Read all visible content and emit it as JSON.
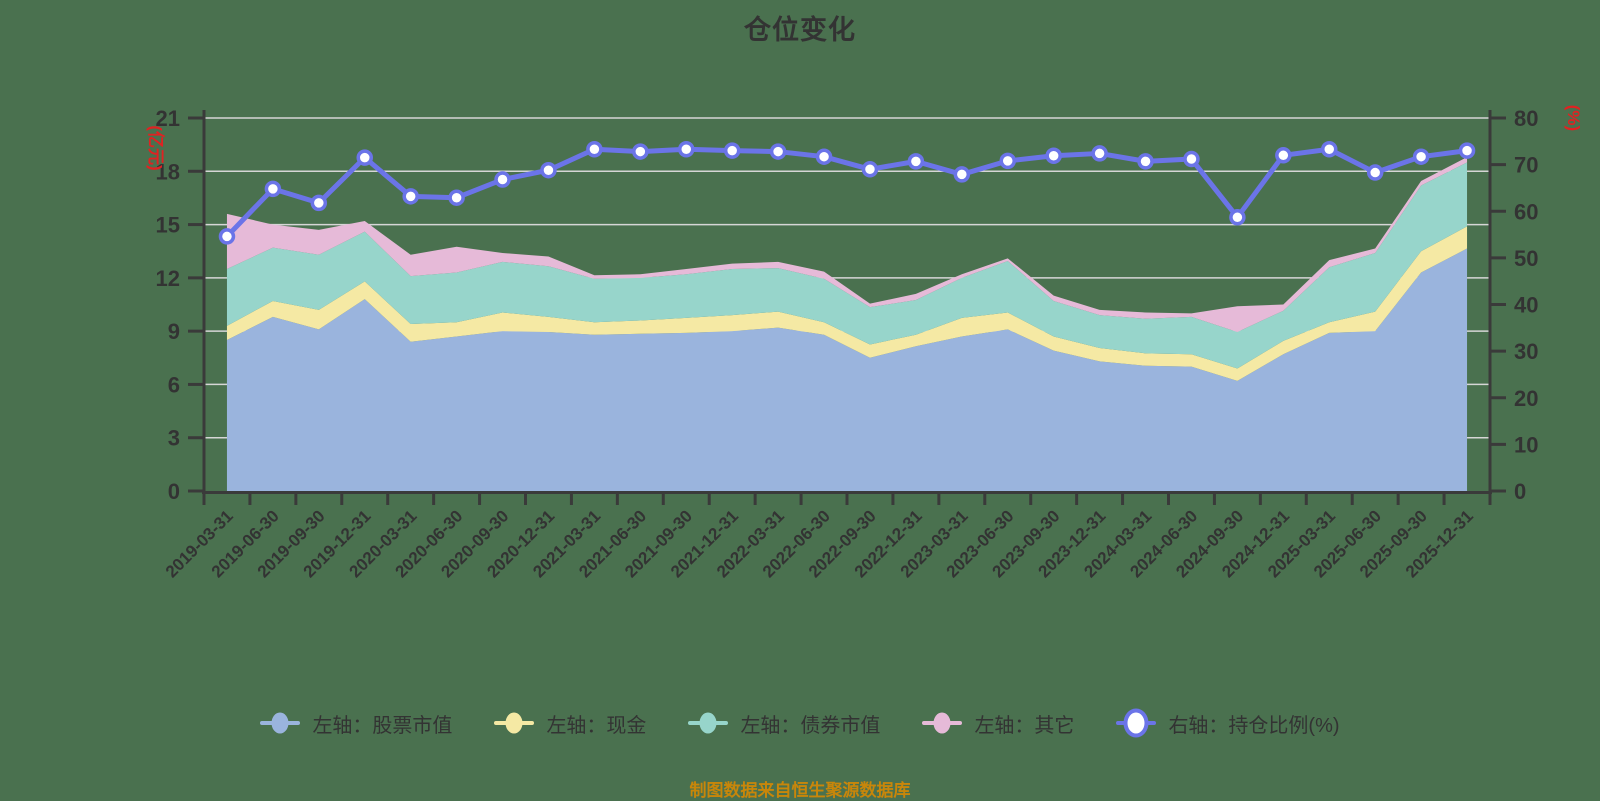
{
  "title": "仓位变化",
  "footer": "制图数据来自恒生聚源数据库",
  "legend": {
    "items": [
      {
        "label": "左轴：股票市值",
        "color": "#9ab4dd",
        "marker": "filled-circle-line"
      },
      {
        "label": "左轴：现金",
        "color": "#f5e9a4",
        "marker": "filled-circle-line"
      },
      {
        "label": "左轴：债券市值",
        "color": "#97d5cb",
        "marker": "filled-circle-line"
      },
      {
        "label": "左轴：其它",
        "color": "#e6bad8",
        "marker": "filled-circle-line"
      },
      {
        "label": "右轴：持仓比例(%)",
        "color": "#6b74e8",
        "marker": "hollow-circle-line"
      }
    ]
  },
  "chart_data": {
    "type": "area",
    "subtype": "stacked-area-with-line",
    "categories": [
      "2019-03-31",
      "2019-06-30",
      "2019-09-30",
      "2019-12-31",
      "2020-03-31",
      "2020-06-30",
      "2020-09-30",
      "2020-12-31",
      "2021-03-31",
      "2021-06-30",
      "2021-09-30",
      "2021-12-31",
      "2022-03-31",
      "2022-06-30",
      "2022-09-30",
      "2022-12-31",
      "2023-03-31",
      "2023-06-30",
      "2023-09-30",
      "2023-12-31",
      "2024-03-31",
      "2024-06-30",
      "2024-09-30",
      "2024-12-31",
      "2025-03-31",
      "2025-06-30",
      "2025-09-30",
      "2025-12-31"
    ],
    "series": [
      {
        "name": "左轴：股票市值",
        "axis": "left",
        "type": "area",
        "stack": true,
        "color": "#9ab4dd",
        "values": [
          8.5,
          9.8,
          9.1,
          10.8,
          8.4,
          8.7,
          9.0,
          8.95,
          8.8,
          8.85,
          8.9,
          9.0,
          9.2,
          8.8,
          7.5,
          8.15,
          8.7,
          9.1,
          7.9,
          7.3,
          7.05,
          7.0,
          6.2,
          7.7,
          8.9,
          9.0,
          12.3,
          13.65
        ]
      },
      {
        "name": "左轴：现金",
        "axis": "left",
        "type": "area",
        "stack": true,
        "color": "#f5e9a4",
        "values": [
          0.8,
          0.9,
          1.1,
          1.0,
          1.0,
          0.8,
          1.05,
          0.85,
          0.7,
          0.75,
          0.85,
          0.9,
          0.9,
          0.7,
          0.75,
          0.65,
          1.05,
          0.95,
          0.8,
          0.75,
          0.7,
          0.7,
          0.7,
          0.75,
          0.6,
          1.1,
          1.2,
          1.25
        ]
      },
      {
        "name": "左轴：债券市值",
        "axis": "left",
        "type": "area",
        "stack": true,
        "color": "#97d5cb",
        "values": [
          3.2,
          3.0,
          3.1,
          2.8,
          2.7,
          2.8,
          2.85,
          2.85,
          2.45,
          2.4,
          2.45,
          2.6,
          2.45,
          2.45,
          2.1,
          1.95,
          2.25,
          2.9,
          2.0,
          1.85,
          1.95,
          2.1,
          2.05,
          1.7,
          3.1,
          3.3,
          3.7,
          3.6
        ]
      },
      {
        "name": "左轴：其它",
        "axis": "left",
        "type": "area",
        "stack": true,
        "color": "#e6bad8",
        "values": [
          3.1,
          1.3,
          1.4,
          0.6,
          1.2,
          1.45,
          0.5,
          0.55,
          0.2,
          0.2,
          0.3,
          0.3,
          0.35,
          0.4,
          0.2,
          0.35,
          0.2,
          0.15,
          0.3,
          0.3,
          0.35,
          0.2,
          1.45,
          0.35,
          0.4,
          0.25,
          0.25,
          0.3
        ]
      },
      {
        "name": "右轴：持仓比例(%)",
        "axis": "right",
        "type": "line",
        "color": "#6b74e8",
        "marker": "hollow-circle",
        "values": [
          54.6,
          64.8,
          61.8,
          71.5,
          63.2,
          62.9,
          66.8,
          68.8,
          73.3,
          72.8,
          73.3,
          73.0,
          72.8,
          71.7,
          69.0,
          70.7,
          67.9,
          70.8,
          71.9,
          72.4,
          70.7,
          71.2,
          58.7,
          72.0,
          73.3,
          68.3,
          71.7,
          73.0
        ]
      }
    ],
    "left_axis": {
      "unit": "(亿元)",
      "unit_color": "#e02222",
      "min": 0,
      "max": 21,
      "step": 3,
      "ticks": [
        "0",
        "3",
        "6",
        "9",
        "12",
        "15",
        "18",
        "21"
      ]
    },
    "right_axis": {
      "unit": "(%)",
      "unit_color": "#e02222",
      "min": 0,
      "max": 80,
      "step": 10,
      "ticks": [
        "0",
        "10",
        "20",
        "30",
        "40",
        "50",
        "60",
        "70",
        "80"
      ]
    },
    "grid": true,
    "gridline_color": "#d6d6d6",
    "axis_color": "#3a3a3a",
    "label_color": "#333333",
    "background_color": "#4a714f",
    "legend_position": "bottom",
    "x_label_rotation": -45
  }
}
